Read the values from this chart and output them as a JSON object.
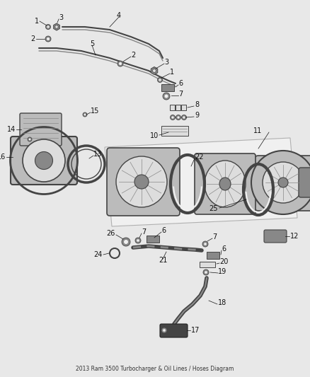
{
  "title": "2013 Ram 3500 Turbocharger & Oil Lines / Hoses Diagram",
  "bg_color": "#e8e8e8",
  "fig_width": 4.38,
  "fig_height": 5.33,
  "dpi": 100,
  "label_fontsize": 7.0,
  "label_color": "#111111",
  "line_color": "#111111",
  "part_color_dark": "#444444",
  "part_color_mid": "#888888",
  "part_color_light": "#bbbbbb",
  "part_color_vlight": "#dddddd",
  "part_color_white": "#f0f0f0"
}
